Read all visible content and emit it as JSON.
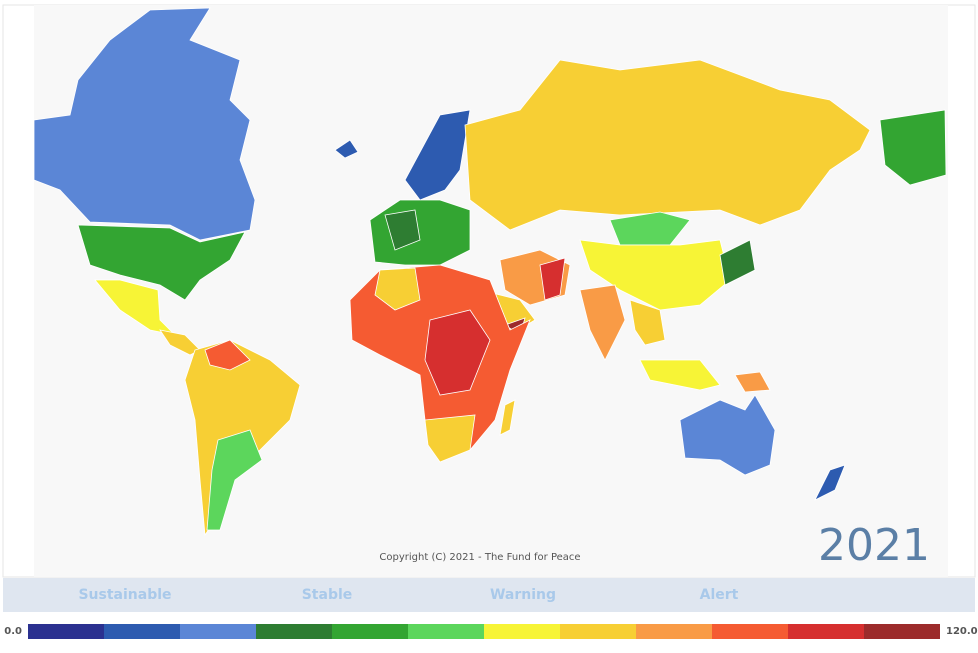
{
  "map": {
    "year": "2021",
    "copyright": "Copyright (C) 2021 - The Fund for Peace"
  },
  "legend": {
    "categories": [
      "Sustainable",
      "Stable",
      "Warning",
      "Alert"
    ],
    "scale": {
      "min": {
        "value": 0,
        "label": "0.0"
      },
      "max": {
        "value": 120,
        "label": "120.0"
      },
      "colors": [
        "#2b3190",
        "#2d5bb0",
        "#5b86d6",
        "#2e7d32",
        "#33a532",
        "#5cd65c",
        "#f7f436",
        "#f7cf34",
        "#f99b46",
        "#f55b32",
        "#d62f2f",
        "#9c2b2b"
      ]
    }
  }
}
